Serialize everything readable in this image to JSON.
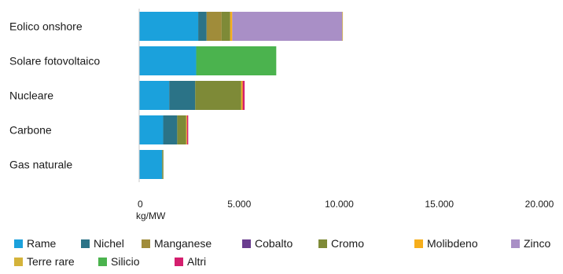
{
  "chart_data": {
    "type": "bar",
    "orientation": "horizontal",
    "stacked": true,
    "categories": [
      "Eolico onshore",
      "Solare fotovoltaico",
      "Nucleare",
      "Carbone",
      "Gas naturale"
    ],
    "series": [
      {
        "name": "Rame",
        "color": "#1ba1dc",
        "values": [
          2950,
          2850,
          1500,
          1200,
          1150
        ]
      },
      {
        "name": "Nichel",
        "color": "#2b7387",
        "values": [
          420,
          0,
          1300,
          700,
          0
        ]
      },
      {
        "name": "Manganese",
        "color": "#a08c3a",
        "values": [
          750,
          0,
          0,
          0,
          0
        ]
      },
      {
        "name": "Cobalto",
        "color": "#6a3d8f",
        "values": [
          0,
          0,
          0,
          0,
          0
        ]
      },
      {
        "name": "Cromo",
        "color": "#7e8a37",
        "values": [
          430,
          0,
          2300,
          450,
          60
        ]
      },
      {
        "name": "Molibdeno",
        "color": "#f6ae1c",
        "values": [
          100,
          0,
          70,
          40,
          0
        ]
      },
      {
        "name": "Zinco",
        "color": "#a98fc6",
        "values": [
          5500,
          0,
          0,
          0,
          0
        ]
      },
      {
        "name": "Terre rare",
        "color": "#d4b33a",
        "values": [
          30,
          0,
          0,
          0,
          0
        ]
      },
      {
        "name": "Silicio",
        "color": "#4bb34e",
        "values": [
          0,
          4000,
          0,
          0,
          0
        ]
      },
      {
        "name": "Altri",
        "color": "#d41f6e",
        "values": [
          0,
          0,
          100,
          60,
          0
        ]
      }
    ],
    "x_ticks": [
      0,
      5000,
      10000,
      15000,
      20000
    ],
    "x_tick_labels": [
      "0",
      "5.000",
      "10.000",
      "15.000",
      "20.000"
    ],
    "xlim": [
      0,
      20000
    ],
    "xlabel": "kg/MW",
    "ylabel": "",
    "title": "",
    "grid": false,
    "legend_position": "bottom"
  }
}
